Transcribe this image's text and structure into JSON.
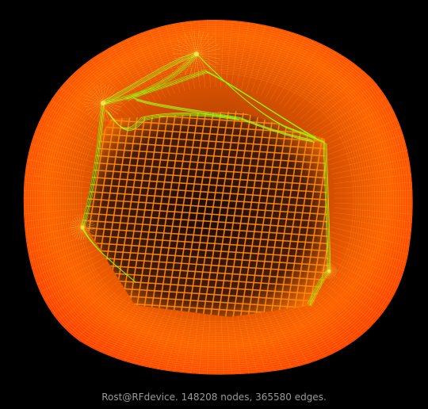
{
  "caption": "Rost@RFdevice. 148208 nodes, 365580 edges.",
  "colors": {
    "background": "#000000",
    "mesh_outer": "#ff4a00",
    "mesh_mid": "#ff7a00",
    "mesh_inner": "#ffa000",
    "highlight": "#ffe000",
    "accent_edges": "#7cff00",
    "caption_text": "#9a9a9a"
  }
}
